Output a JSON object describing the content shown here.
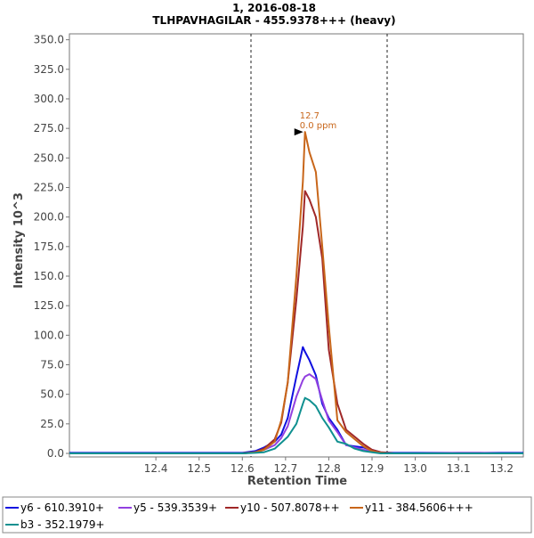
{
  "chart_data": {
    "type": "line",
    "title": "1, 2016-08-18",
    "subtitle": "TLHPAVHAGILAR - 455.9378+++ (heavy)",
    "xlabel": "Retention Time",
    "ylabel": "Intensity 10^3",
    "xlim": [
      12.2,
      13.25
    ],
    "ylim": [
      -3,
      355
    ],
    "x_ticks": [
      12.4,
      12.5,
      12.6,
      12.7,
      12.8,
      12.9,
      13.0,
      13.1,
      13.2
    ],
    "x_tick_labels": [
      "12.4",
      "12.5",
      "12.6",
      "12.7",
      "12.8",
      "12.9",
      "13.0",
      "13.1",
      "13.2"
    ],
    "y_ticks": [
      0,
      25,
      50,
      75,
      100,
      125,
      150,
      175,
      200,
      225,
      250,
      275,
      300,
      325,
      350
    ],
    "y_tick_labels": [
      "0.0",
      "25.0",
      "50.0",
      "75.0",
      "100.0",
      "125.0",
      "150.0",
      "175.0",
      "200.0",
      "225.0",
      "250.0",
      "275.0",
      "300.0",
      "325.0",
      "350.0"
    ],
    "grid": false,
    "legend_position": "bottom",
    "integration_boundaries": [
      12.62,
      12.935
    ],
    "peak_annotation": {
      "x": 12.745,
      "y": 272,
      "label_rt": "12.7",
      "label_ppm": "0.0 ppm",
      "color": "#c8661a"
    },
    "x": [
      12.2,
      12.6,
      12.63,
      12.65,
      12.675,
      12.69,
      12.705,
      12.725,
      12.74,
      12.745,
      12.755,
      12.77,
      12.785,
      12.8,
      12.82,
      12.84,
      12.86,
      12.88,
      12.9,
      12.92,
      12.95,
      13.0,
      13.1,
      13.13,
      13.15,
      13.2,
      13.25
    ],
    "series": [
      {
        "name": "y6 - 610.3910+",
        "color": "#1010e0",
        "values": [
          0.5,
          0.5,
          2,
          5,
          10,
          16,
          30,
          65,
          90,
          86,
          79,
          66,
          42,
          30,
          20,
          7,
          6,
          5,
          3,
          1,
          0.5,
          0.5,
          0.5,
          0.5,
          0.5,
          0.5,
          0.5
        ]
      },
      {
        "name": "y5 - 539.3539+",
        "color": "#9240e0",
        "values": [
          0,
          0,
          1,
          3,
          7,
          13,
          23,
          48,
          62,
          65,
          67,
          63,
          45,
          28,
          18,
          7,
          5,
          3,
          2,
          0.5,
          0,
          0,
          0.5,
          0.5,
          0.5,
          0,
          0
        ]
      },
      {
        "name": "y10 - 507.8078++",
        "color": "#a02828",
        "values": [
          0,
          0,
          1,
          4,
          12,
          26,
          60,
          130,
          192,
          222,
          215,
          200,
          165,
          88,
          42,
          20,
          14,
          8,
          3,
          1,
          0,
          0,
          0,
          0,
          0,
          0,
          0
        ]
      },
      {
        "name": "y11 - 384.5606+++",
        "color": "#c8661a",
        "values": [
          0,
          0,
          1,
          3,
          10,
          28,
          60,
          150,
          230,
          272,
          255,
          238,
          175,
          108,
          28,
          18,
          12,
          6,
          2,
          0.5,
          0,
          0,
          0,
          0,
          0,
          0,
          0
        ]
      },
      {
        "name": "b3 - 352.1979+",
        "color": "#109090",
        "values": [
          0,
          0,
          0.5,
          1,
          4,
          9,
          14,
          25,
          42,
          47,
          45,
          40,
          30,
          22,
          10,
          8,
          4,
          2,
          1,
          0,
          0,
          0,
          0,
          0,
          0,
          0,
          0
        ]
      }
    ]
  }
}
